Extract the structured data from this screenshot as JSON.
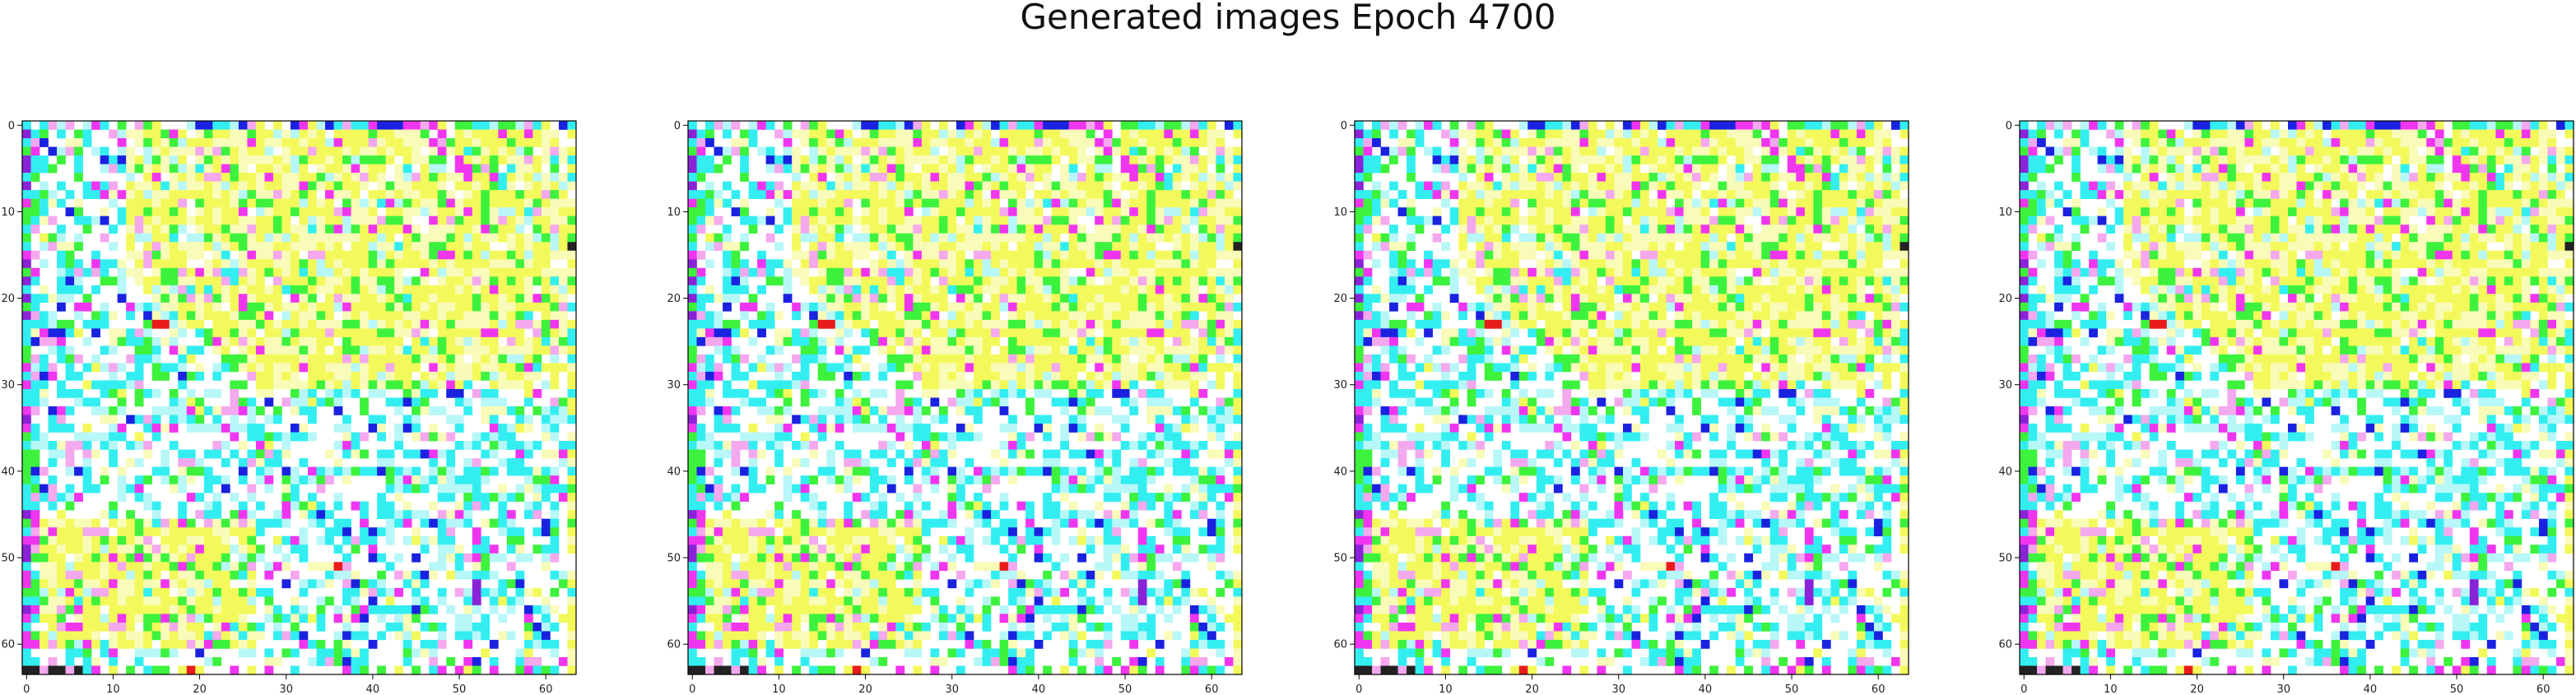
{
  "title": "Generated images Epoch 4700",
  "chart_data": {
    "type": "heatmap",
    "grid_size": [
      64,
      64
    ],
    "panels": 4,
    "note_identical": "all four panels display the same generated image",
    "xticks": [
      0,
      10,
      20,
      30,
      40,
      50,
      60
    ],
    "yticks": [
      0,
      10,
      20,
      30,
      40,
      50,
      60
    ],
    "xlim": [
      -0.5,
      63.5
    ],
    "ylim": [
      63.5,
      -0.5
    ],
    "palette": {
      "white": "#ffffff",
      "cyan": "#33eef0",
      "light_cyan": "#b8f7f8",
      "yellow": "#f3f95a",
      "pale_yellow": "#f9fbb8",
      "green": "#3df23d",
      "magenta": "#f035f0",
      "pink": "#f4a8ee",
      "blue": "#1a22e0",
      "purple": "#8a22d8",
      "red": "#e81b1b",
      "black": "#222222",
      "olive": "#b8b870"
    }
  }
}
